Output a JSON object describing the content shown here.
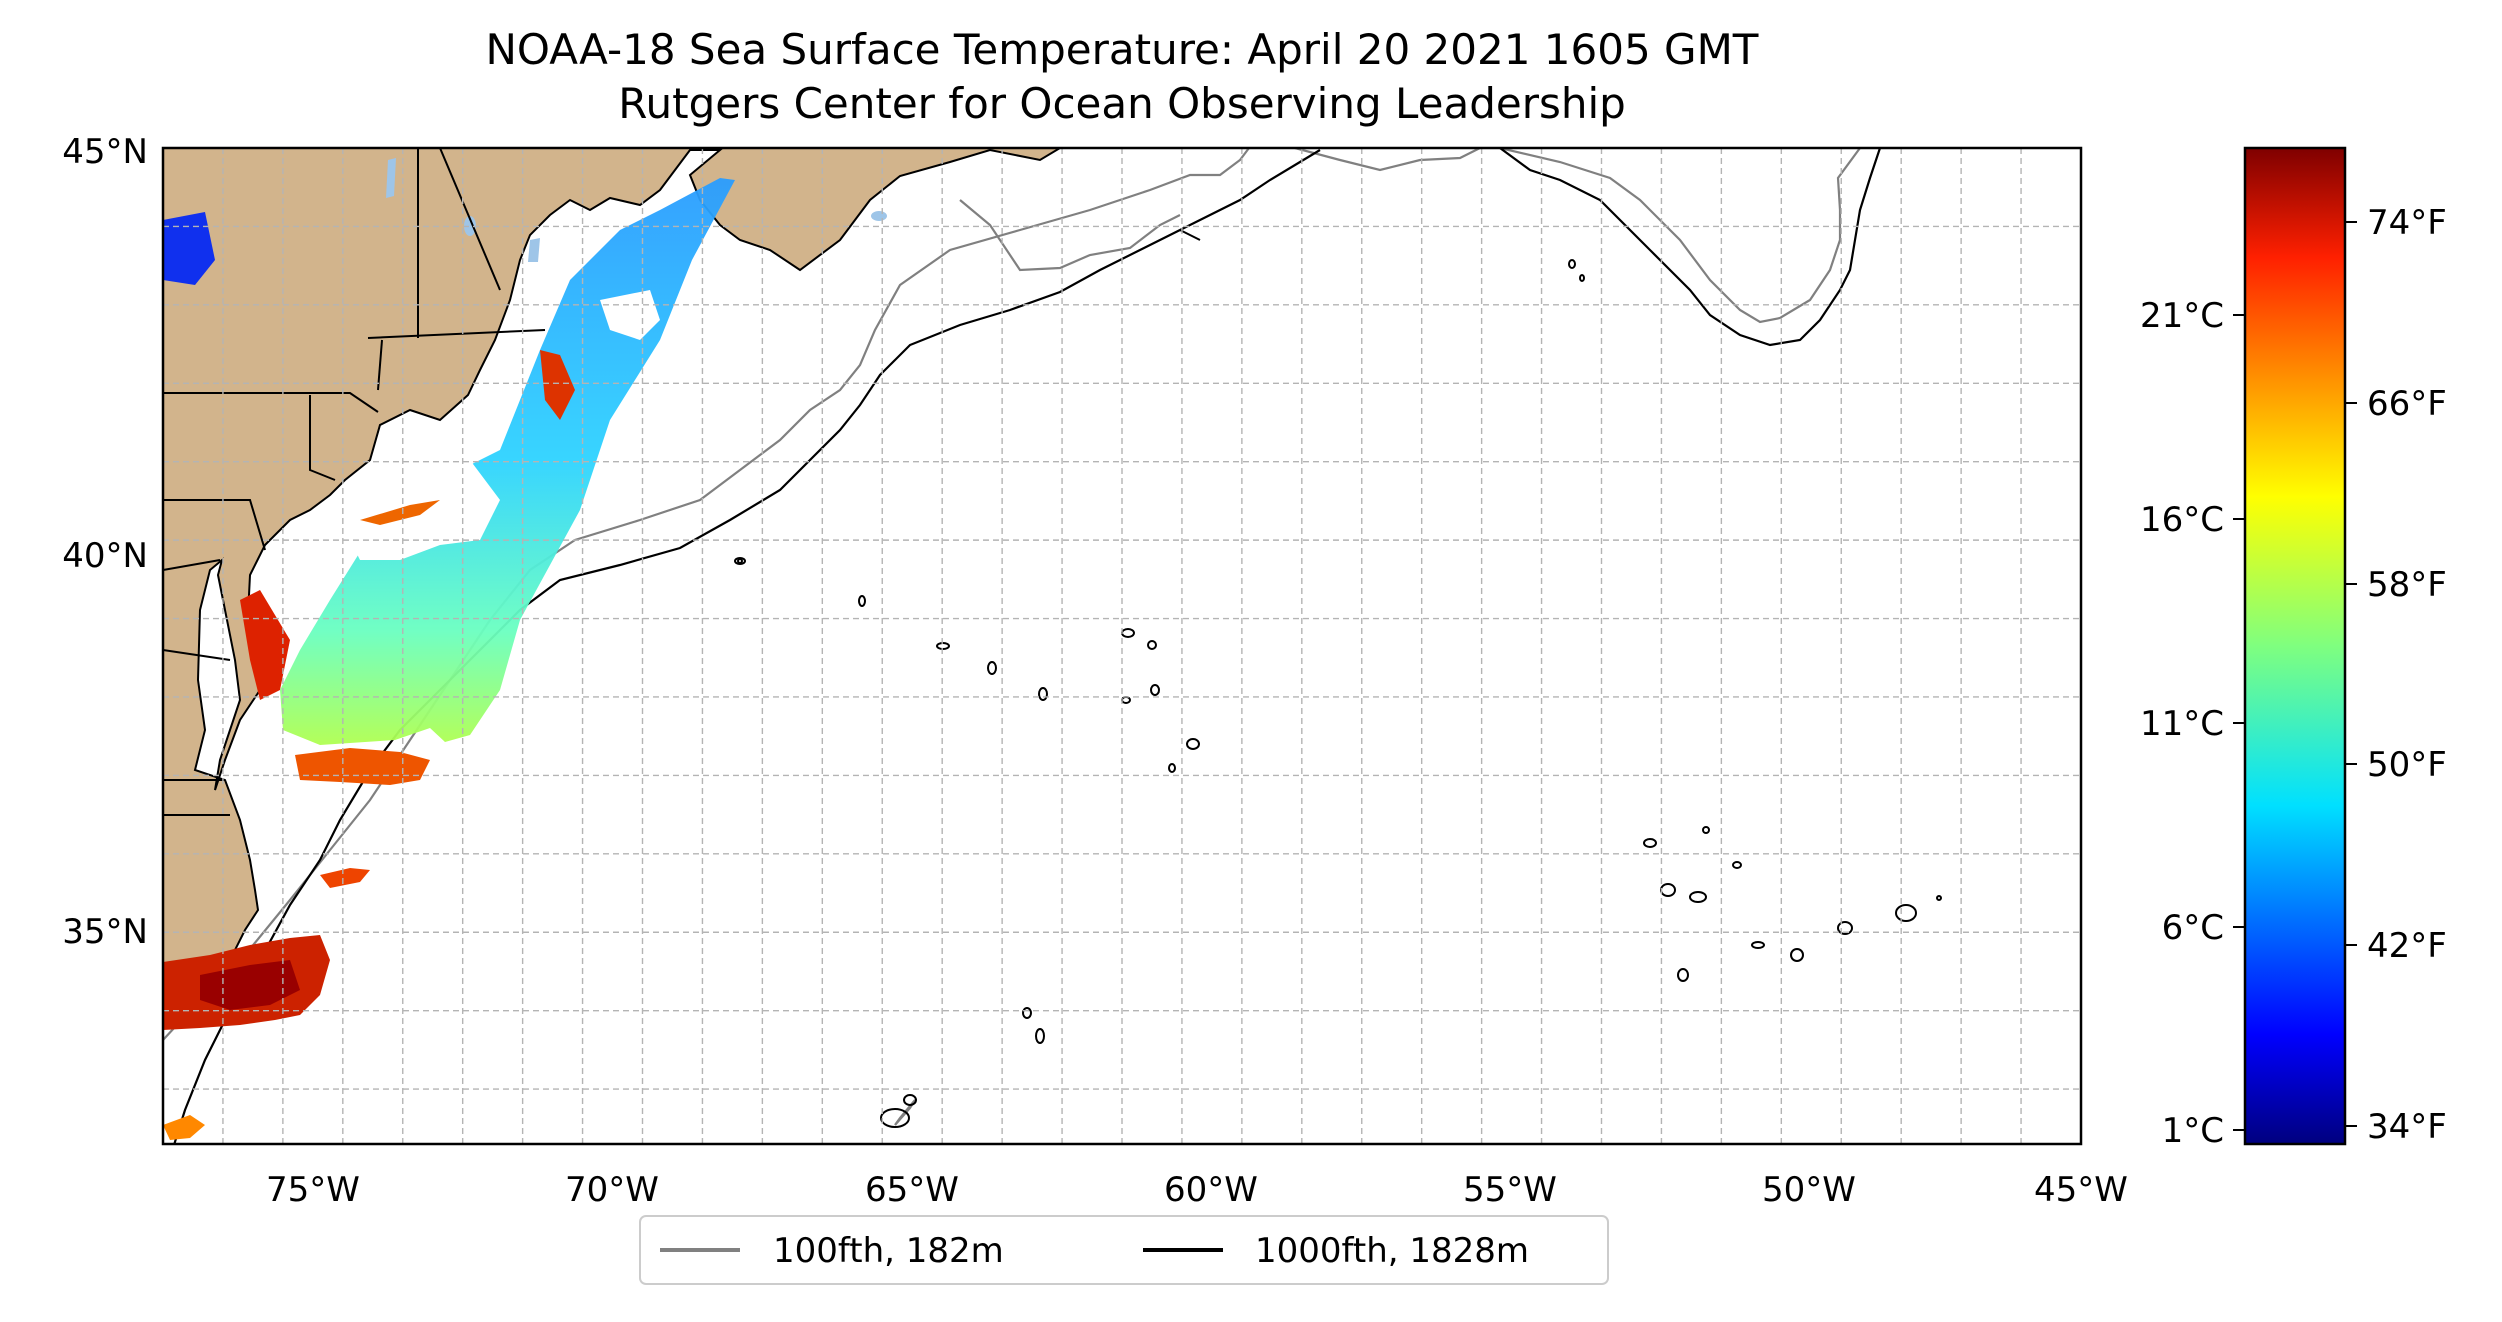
{
  "title_line1": "NOAA-18 Sea Surface Temperature: April 20 2021 1605 GMT",
  "title_line2": "Rutgers Center for Ocean Observing Leadership",
  "map": {
    "lon_range": [
      -77,
      -45
    ],
    "lat_range": [
      32.3,
      45
    ],
    "lat_tick_labels": [
      "45°N",
      "40°N",
      "35°N"
    ],
    "lon_tick_labels": [
      "75°W",
      "70°W",
      "65°W",
      "60°W",
      "55°W",
      "50°W",
      "45°W"
    ],
    "grid": true,
    "land_color": "#d2b48c",
    "lake_color": "#9ec5e8"
  },
  "legend": {
    "placement": "bottom-center",
    "items": [
      {
        "label": "100fth, 182m",
        "color": "#808080"
      },
      {
        "label": "1000fth, 1828m",
        "color": "#000000"
      }
    ]
  },
  "colorbar": {
    "colormap": "jet",
    "celsius_labels": [
      "21°C",
      "16°C",
      "11°C",
      "6°C",
      "1°C"
    ],
    "fahrenheit_labels": [
      "74°F",
      "66°F",
      "58°F",
      "50°F",
      "42°F",
      "34°F"
    ]
  }
}
